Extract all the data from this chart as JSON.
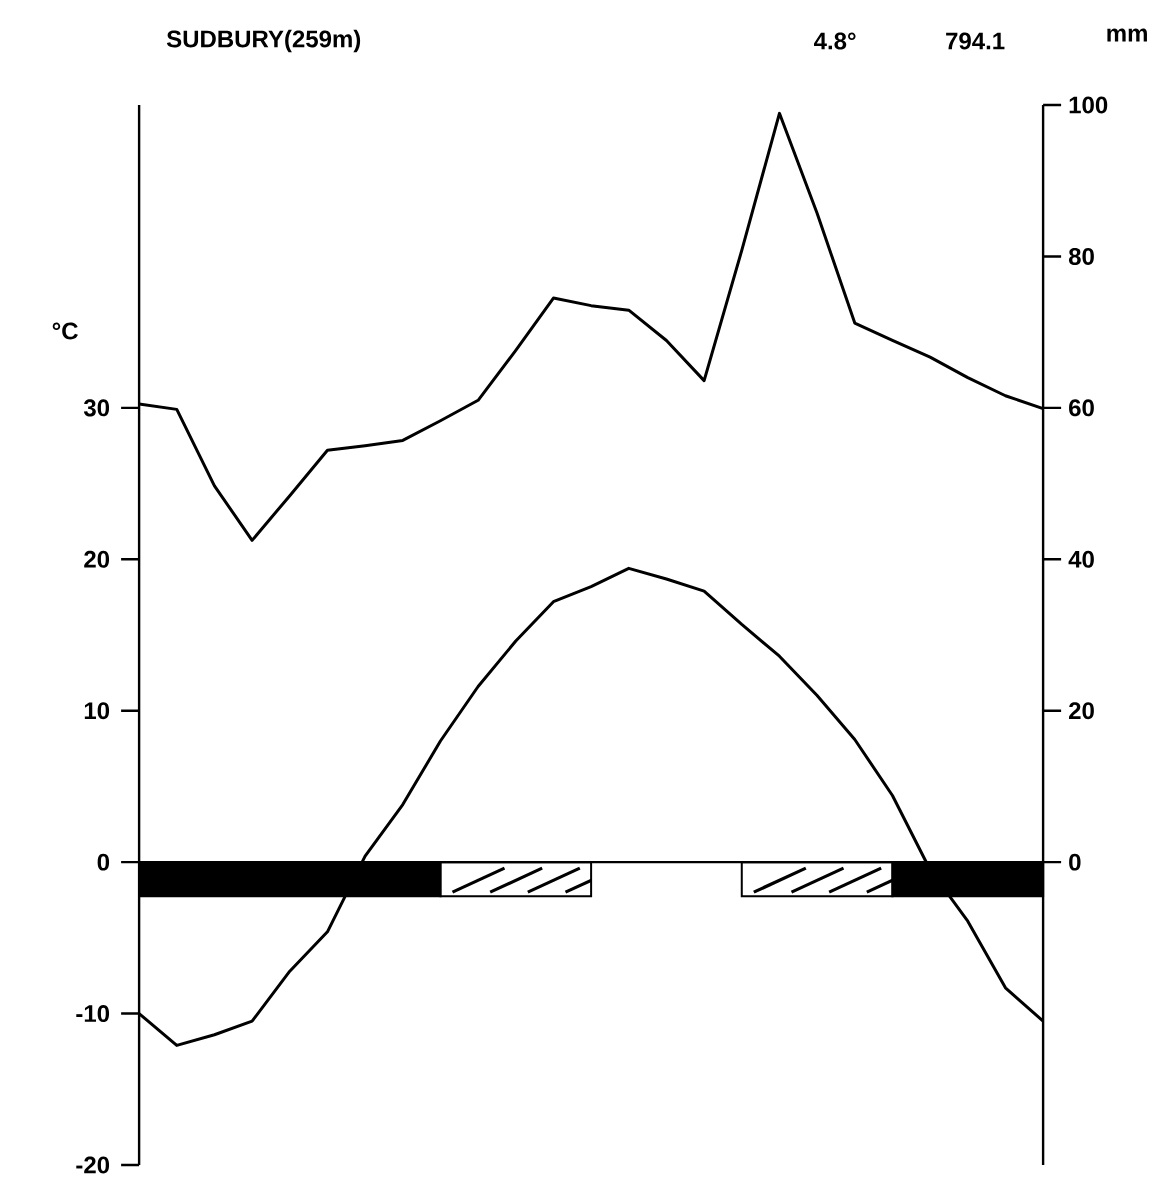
{
  "chart_data": {
    "type": "line",
    "title": "SUDBURY(259m)",
    "ylabel": "°C",
    "y2label": "mm",
    "annotations": [
      "4.8°",
      "794.1"
    ],
    "categories": [
      null,
      null,
      null,
      null,
      null,
      null,
      null,
      null,
      null,
      null,
      null,
      null,
      null,
      null,
      null,
      null,
      null,
      null,
      null,
      null,
      null,
      null,
      null,
      null,
      null
    ],
    "series": [
      {
        "color": "#000000",
        "values": [
          -10.0,
          -12.1,
          -11.4,
          -10.5,
          -7.2,
          -4.6,
          0.4,
          3.8,
          8.0,
          11.6,
          14.6,
          17.2,
          18.2,
          19.4,
          18.7,
          17.9,
          15.7,
          13.6,
          11.0,
          8.1,
          4.4,
          -0.5,
          -3.9,
          -8.3,
          -10.5
        ]
      },
      {
        "color": "#000000",
        "axis": "y2",
        "values": [
          60.5,
          59.8,
          49.7,
          42.5,
          48.4,
          54.4,
          55.0,
          55.7,
          58.3,
          61.0,
          67.6,
          74.5,
          73.5,
          72.9,
          68.9,
          63.6,
          80.8,
          98.9,
          85.7,
          71.2,
          68.9,
          66.7,
          64.0,
          61.6,
          59.9
        ]
      }
    ],
    "ylim": [
      -20,
      50
    ],
    "yticks": [
      -20,
      -10,
      0,
      10,
      20,
      30
    ],
    "y2lim": [
      -40,
      100
    ],
    "y2ticks": [
      0,
      20,
      40,
      60,
      80,
      100
    ],
    "line_style": "solid",
    "marker": "none"
  }
}
